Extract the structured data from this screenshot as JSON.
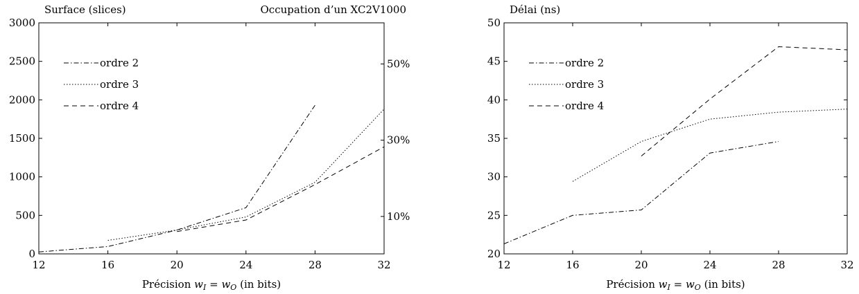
{
  "chart_data": [
    {
      "type": "line",
      "title": "Occupation d’un XC2V1000",
      "ylabel": "Surface (slices)",
      "xlabel_text": "Précision ",
      "xlabel_math_main1": "w",
      "xlabel_math_sub1": "I",
      "xlabel_math_eq": " = ",
      "xlabel_math_main2": "w",
      "xlabel_math_sub2": "O",
      "xlabel_unit": " (in bits)",
      "xlim": [
        12,
        32
      ],
      "ylim": [
        0,
        3000
      ],
      "xticks": [
        "12",
        "16",
        "20",
        "24",
        "28",
        "32"
      ],
      "yticks": [
        "0",
        "500",
        "1000",
        "1500",
        "2000",
        "2500",
        "3000"
      ],
      "right_ticks": [
        {
          "label": "10%",
          "value": 486
        },
        {
          "label": "30%",
          "value": 1476
        },
        {
          "label": "50%",
          "value": 2466
        }
      ],
      "legend_position": "top-left",
      "series": [
        {
          "name": "ordre 2",
          "dash": "dashdot",
          "x": [
            12,
            16,
            20,
            24,
            28
          ],
          "y": [
            25,
            95,
            310,
            600,
            1930
          ]
        },
        {
          "name": "ordre 3",
          "dash": "dotted",
          "x": [
            16,
            20,
            24,
            28,
            32
          ],
          "y": [
            175,
            310,
            480,
            930,
            1880
          ]
        },
        {
          "name": "ordre 4",
          "dash": "dashed",
          "x": [
            20,
            24,
            28,
            32
          ],
          "y": [
            290,
            440,
            900,
            1390
          ]
        }
      ]
    },
    {
      "type": "line",
      "title": "",
      "ylabel": "Délai (ns)",
      "xlabel_text": "Précision ",
      "xlabel_math_main1": "w",
      "xlabel_math_sub1": "I",
      "xlabel_math_eq": " = ",
      "xlabel_math_main2": "w",
      "xlabel_math_sub2": "O",
      "xlabel_unit": " (in bits)",
      "xlim": [
        12,
        32
      ],
      "ylim": [
        20,
        50
      ],
      "xticks": [
        "12",
        "16",
        "20",
        "24",
        "28",
        "32"
      ],
      "yticks": [
        "20",
        "25",
        "30",
        "35",
        "40",
        "45",
        "50"
      ],
      "right_ticks": [],
      "legend_position": "top-left",
      "series": [
        {
          "name": "ordre 2",
          "dash": "dashdot",
          "x": [
            12,
            16,
            20,
            24,
            28
          ],
          "y": [
            21.3,
            25.0,
            25.7,
            33.1,
            34.6
          ]
        },
        {
          "name": "ordre 3",
          "dash": "dotted",
          "x": [
            16,
            20,
            24,
            28,
            32
          ],
          "y": [
            29.4,
            34.6,
            37.5,
            38.4,
            38.8
          ]
        },
        {
          "name": "ordre 4",
          "dash": "dashed",
          "x": [
            20,
            24,
            28,
            32
          ],
          "y": [
            32.7,
            40.1,
            46.9,
            46.5
          ]
        }
      ]
    }
  ]
}
